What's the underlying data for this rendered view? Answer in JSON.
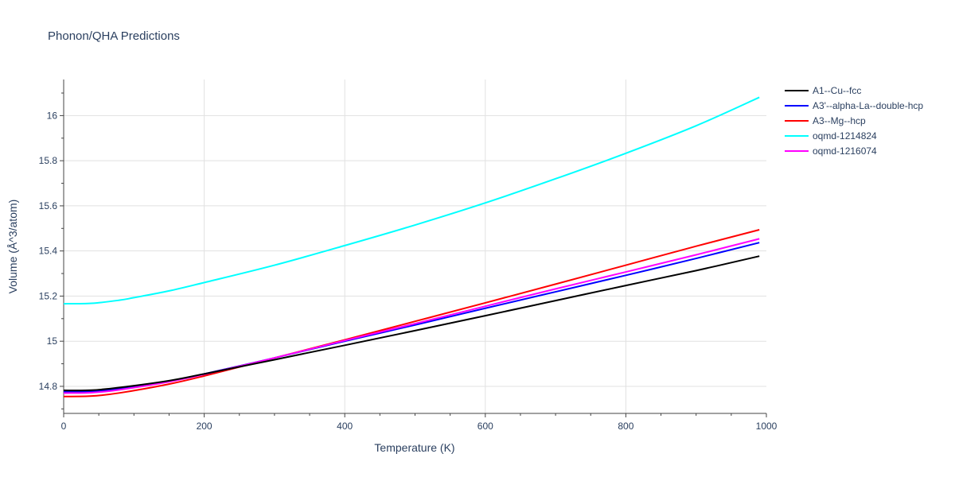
{
  "chart_data": {
    "type": "line",
    "title": "Phonon/QHA Predictions",
    "xlabel": "Temperature (K)",
    "ylabel": "Volume (Å^3/atom)",
    "xlim": [
      0,
      1000
    ],
    "ylim": [
      14.68,
      16.16
    ],
    "xticks": [
      0,
      200,
      400,
      600,
      800,
      1000
    ],
    "xtick_labels": [
      "0",
      "200",
      "400",
      "600",
      "800",
      "1000"
    ],
    "yticks": [
      14.8,
      15.0,
      15.2,
      15.4,
      15.6,
      15.8,
      16.0
    ],
    "ytick_labels": [
      "14.8",
      "15",
      "15.2",
      "15.4",
      "15.6",
      "15.8",
      "16"
    ],
    "grid": true,
    "legend_position": "top-right, outside plot",
    "series": [
      {
        "name": "A1--Cu--fcc",
        "color": "#000000",
        "x": [
          0,
          40,
          80,
          150,
          200,
          300,
          400,
          500,
          600,
          700,
          800,
          900,
          990
        ],
        "y": [
          14.782,
          14.783,
          14.795,
          14.825,
          14.855,
          14.918,
          14.982,
          15.047,
          15.113,
          15.18,
          15.247,
          15.313,
          15.377
        ]
      },
      {
        "name": "A3'--alpha-La--double-hcp",
        "color": "#0000ff",
        "x": [
          0,
          40,
          80,
          150,
          200,
          300,
          400,
          500,
          600,
          700,
          800,
          900,
          990
        ],
        "y": [
          14.777,
          14.778,
          14.79,
          14.822,
          14.855,
          14.926,
          15.0,
          15.072,
          15.146,
          15.219,
          15.292,
          15.367,
          15.437
        ]
      },
      {
        "name": "A3--Mg--hcp",
        "color": "#ff0000",
        "x": [
          0,
          40,
          80,
          150,
          200,
          300,
          400,
          500,
          600,
          700,
          800,
          900,
          990
        ],
        "y": [
          14.755,
          14.757,
          14.771,
          14.81,
          14.846,
          14.926,
          15.006,
          15.088,
          15.17,
          15.253,
          15.337,
          15.421,
          15.494
        ]
      },
      {
        "name": "oqmd-1214824",
        "color": "#00ffff",
        "x": [
          0,
          40,
          80,
          100,
          150,
          200,
          300,
          400,
          500,
          600,
          700,
          800,
          900,
          990
        ],
        "y": [
          15.166,
          15.168,
          15.182,
          15.193,
          15.223,
          15.26,
          15.337,
          15.424,
          15.515,
          15.613,
          15.72,
          15.833,
          15.955,
          16.081
        ]
      },
      {
        "name": "oqmd-1216074",
        "color": "#ff00ff",
        "x": [
          0,
          40,
          80,
          150,
          200,
          300,
          400,
          500,
          600,
          700,
          800,
          900,
          990
        ],
        "y": [
          14.77,
          14.772,
          14.785,
          14.82,
          14.853,
          14.926,
          15.003,
          15.078,
          15.155,
          15.232,
          15.307,
          15.383,
          15.454
        ]
      }
    ]
  }
}
